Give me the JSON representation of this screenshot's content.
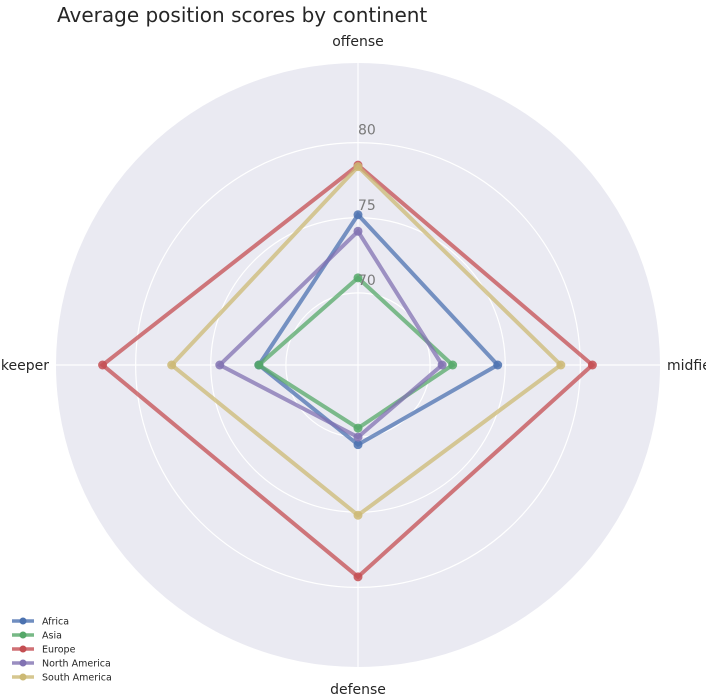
{
  "chart_data": {
    "type": "radar",
    "title": "Average position scores by continent",
    "axes": [
      "offense",
      "midfield",
      "defense",
      "goalkeeper"
    ],
    "r_ticks": [
      70,
      75,
      80
    ],
    "r_range": [
      65.2,
      85.3
    ],
    "grid": true,
    "legend_position": "lower-left",
    "series": [
      {
        "name": "Africa",
        "color": "#4c72b0",
        "values": [
          75.2,
          74.5,
          70.5,
          71.8
        ]
      },
      {
        "name": "Asia",
        "color": "#55a868",
        "values": [
          71.0,
          71.5,
          69.4,
          71.8
        ]
      },
      {
        "name": "Europe",
        "color": "#c44e52",
        "values": [
          78.5,
          80.8,
          79.3,
          82.2
        ]
      },
      {
        "name": "North America",
        "color": "#8172b2",
        "values": [
          74.1,
          70.8,
          70.0,
          74.4
        ]
      },
      {
        "name": "South America",
        "color": "#ccb974",
        "values": [
          78.4,
          78.7,
          75.2,
          77.6
        ]
      }
    ]
  }
}
